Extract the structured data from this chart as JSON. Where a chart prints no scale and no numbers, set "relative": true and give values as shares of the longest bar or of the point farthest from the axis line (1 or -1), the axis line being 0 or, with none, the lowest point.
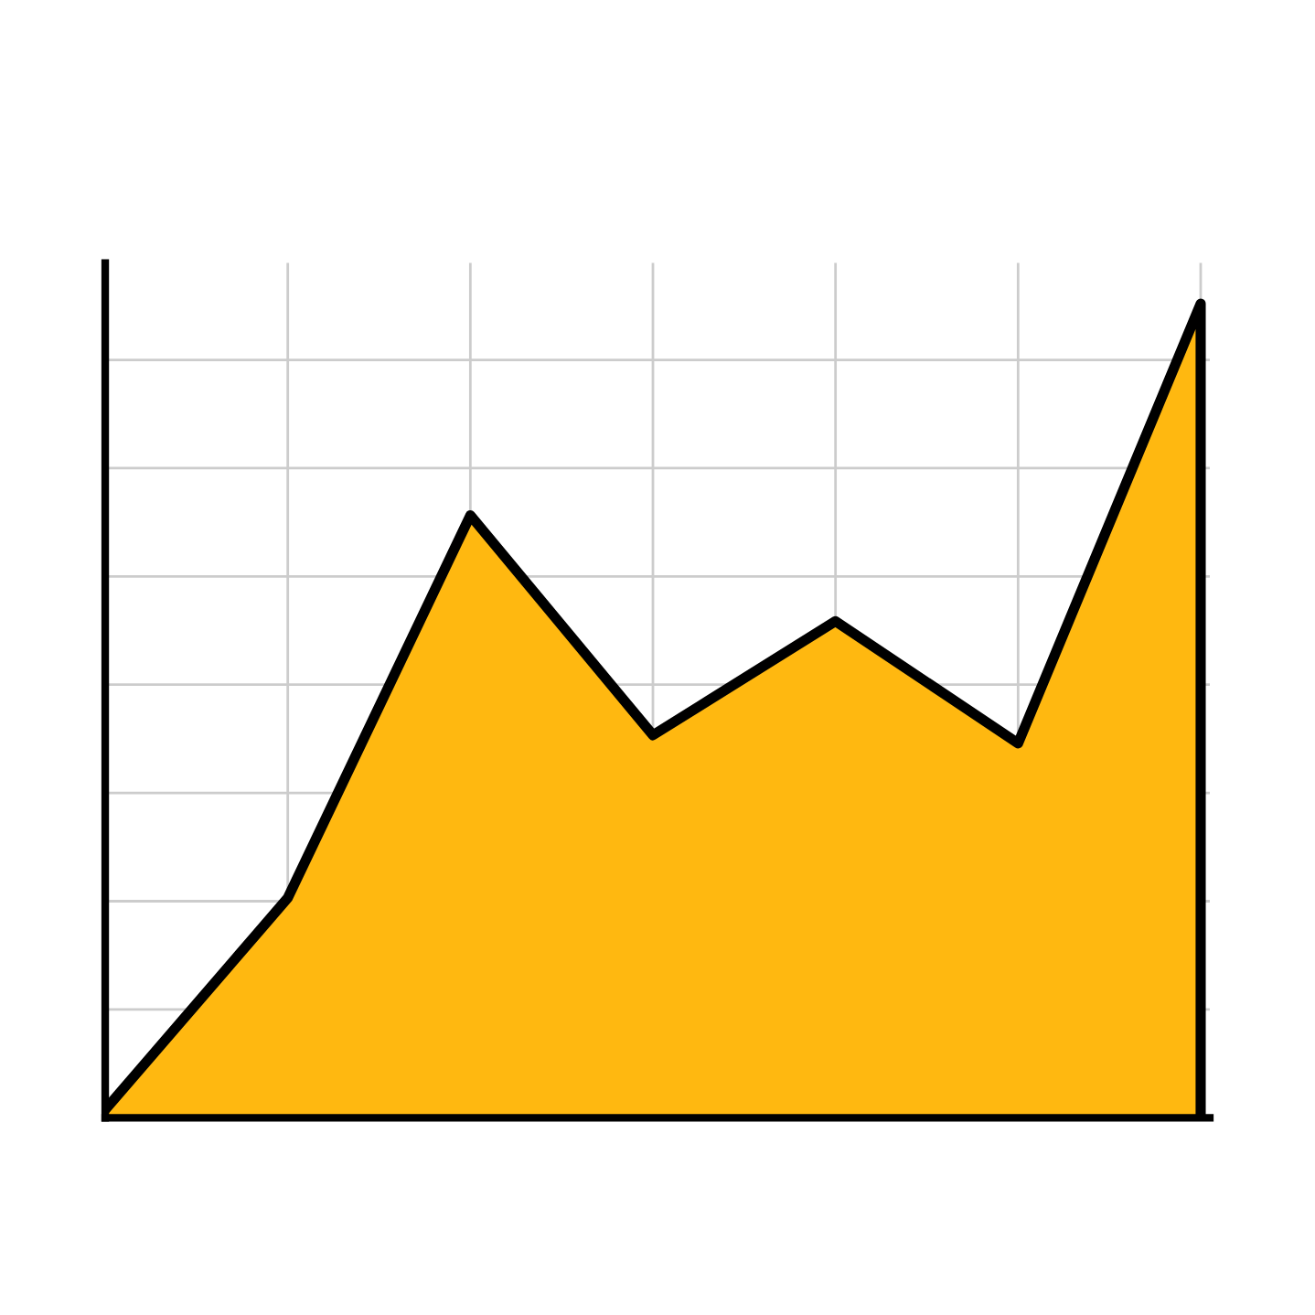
{
  "chart_data": {
    "type": "area",
    "relative": true,
    "categories": [
      null,
      null,
      null,
      null,
      null,
      null,
      null
    ],
    "series": [
      {
        "color": "#ffb810",
        "values": [
          0.01,
          0.27,
          0.74,
          0.47,
          0.61,
          0.46,
          1
        ]
      }
    ],
    "grid": true
  }
}
